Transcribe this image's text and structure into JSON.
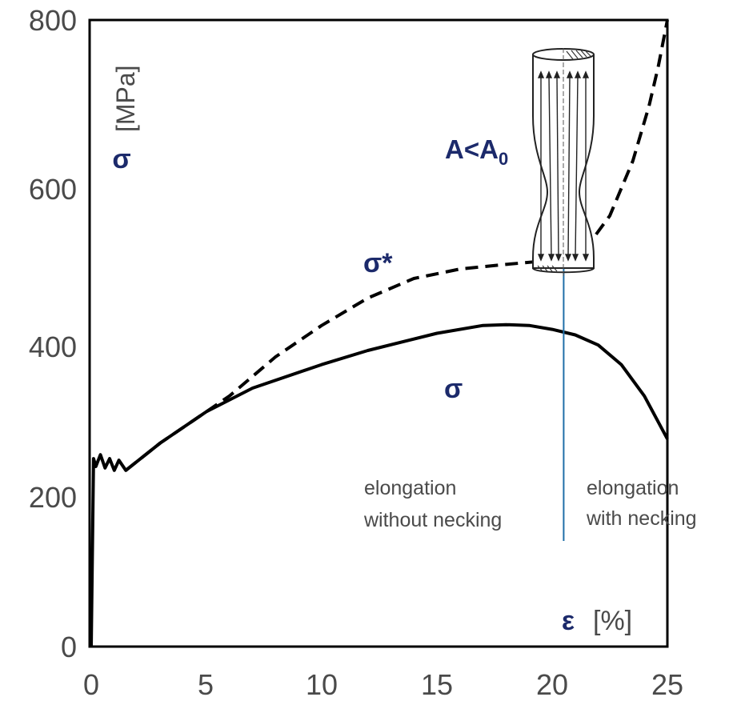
{
  "chart_data": {
    "type": "line",
    "x_range": [
      0,
      25
    ],
    "y_range": [
      0,
      800
    ],
    "x_ticks": [
      "0",
      "5",
      "10",
      "15",
      "20",
      "25"
    ],
    "y_ticks": [
      "0",
      "200",
      "400",
      "600",
      "800"
    ],
    "xlabel": {
      "symbol": "ε",
      "unit": "[%]"
    },
    "ylabel": {
      "symbol": "σ",
      "unit": "[MPa]"
    },
    "grid": false,
    "series": [
      {
        "name": "σ*",
        "style": "dashed",
        "x": [
          1.5,
          3,
          5,
          6,
          8,
          10,
          12,
          14,
          16,
          18,
          19.5,
          20.5,
          21.5,
          22.5,
          23.5,
          24.2,
          24.6,
          25
        ],
        "y": [
          225,
          260,
          300,
          320,
          370,
          410,
          445,
          470,
          482,
          488,
          492,
          497,
          510,
          550,
          620,
          690,
          740,
          800
        ]
      },
      {
        "name": "σ",
        "style": "solid",
        "x": [
          0,
          0.1,
          0.2,
          0.4,
          0.6,
          0.8,
          1.0,
          1.2,
          1.5,
          3,
          5,
          7,
          10,
          12,
          15,
          17,
          18,
          19,
          20,
          21,
          22,
          23,
          24,
          25
        ],
        "y": [
          0,
          240,
          230,
          245,
          228,
          240,
          225,
          238,
          225,
          260,
          300,
          330,
          360,
          378,
          400,
          410,
          411,
          410,
          405,
          398,
          385,
          360,
          320,
          265
        ]
      }
    ],
    "annotations": {
      "sigma_star": "σ*",
      "sigma": "σ",
      "area_condition": "A<A",
      "area_subscript": "0",
      "necking_boundary_x": 20.5,
      "left_region": [
        "elongation",
        "without necking"
      ],
      "right_region": [
        "elongation",
        "with necking"
      ]
    },
    "colors": {
      "curves": "#000000",
      "boundary": "#1f6fa8",
      "labels": "#1c2a6b",
      "text": "#4a4a4a"
    }
  }
}
